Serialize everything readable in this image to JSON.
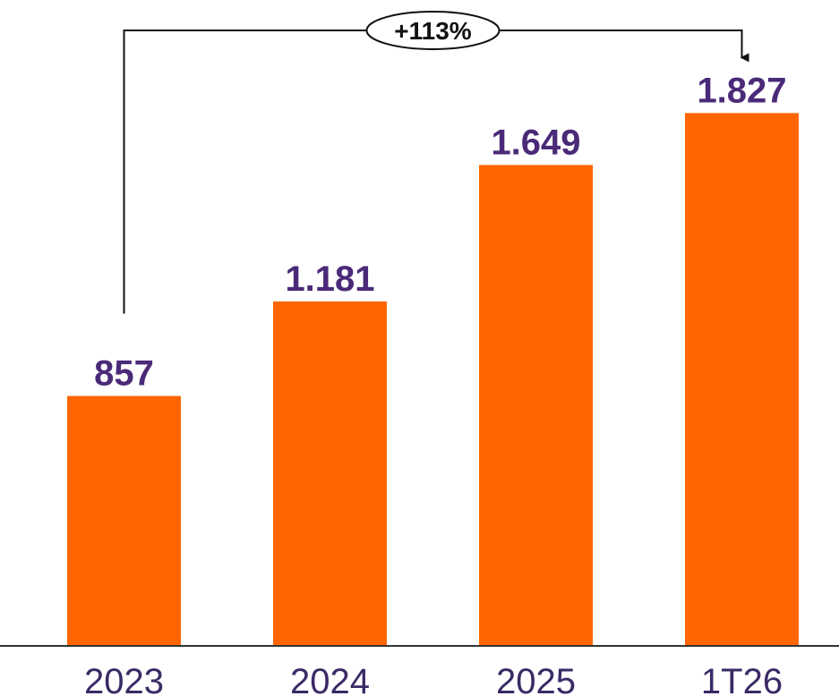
{
  "chart_data": {
    "type": "bar",
    "categories": [
      "2023",
      "2024",
      "2025",
      "1T26"
    ],
    "values": [
      857,
      1181,
      1649,
      1827
    ],
    "value_labels": [
      "857",
      "1.181",
      "1.649",
      "1.827"
    ],
    "color": "#ff6600",
    "ylim": [
      0,
      2000
    ],
    "annotation": "+113%"
  }
}
